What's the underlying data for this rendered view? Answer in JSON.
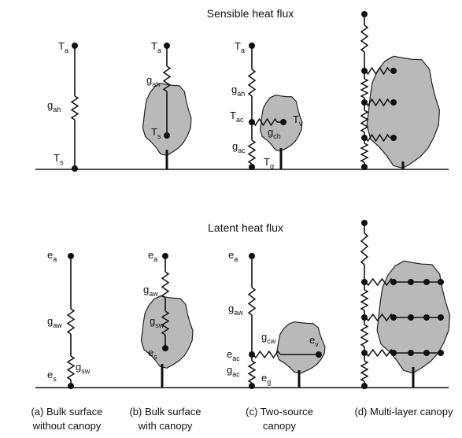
{
  "sensible": {
    "title": "Sensible heat flux",
    "labels": [
      [
        "T",
        "a"
      ],
      [
        "g",
        "ah"
      ],
      [
        "T",
        "s"
      ],
      [
        "T",
        "a"
      ],
      [
        "g",
        "ah"
      ],
      [
        "T",
        "s"
      ],
      [
        "T",
        "a"
      ],
      [
        "g",
        "ah"
      ],
      [
        "T",
        "ac"
      ],
      [
        "g",
        "ch"
      ],
      [
        "T",
        "v"
      ],
      [
        "g",
        "ac"
      ],
      [
        "T",
        "g"
      ]
    ]
  },
  "latent": {
    "title": "Latent heat flux",
    "labels": [
      [
        "e",
        "a"
      ],
      [
        "g",
        "aw"
      ],
      [
        "e",
        "s"
      ],
      [
        "g",
        "sw"
      ],
      [
        "e",
        "a"
      ],
      [
        "g",
        "aw"
      ],
      [
        "g",
        "sw"
      ],
      [
        "e",
        "s"
      ],
      [
        "e",
        "a"
      ],
      [
        "g",
        "aw"
      ],
      [
        "g",
        "cw"
      ],
      [
        "e",
        "ac"
      ],
      [
        "e",
        "v"
      ],
      [
        "g",
        "ac"
      ],
      [
        "e",
        "g"
      ]
    ]
  },
  "captions": [
    [
      "(a) Bulk surface",
      "without canopy"
    ],
    [
      "(b) Bulk surface",
      "with canopy"
    ],
    [
      "(c) Two-source",
      "canopy"
    ],
    [
      "(d) Multi-layer canopy"
    ]
  ]
}
